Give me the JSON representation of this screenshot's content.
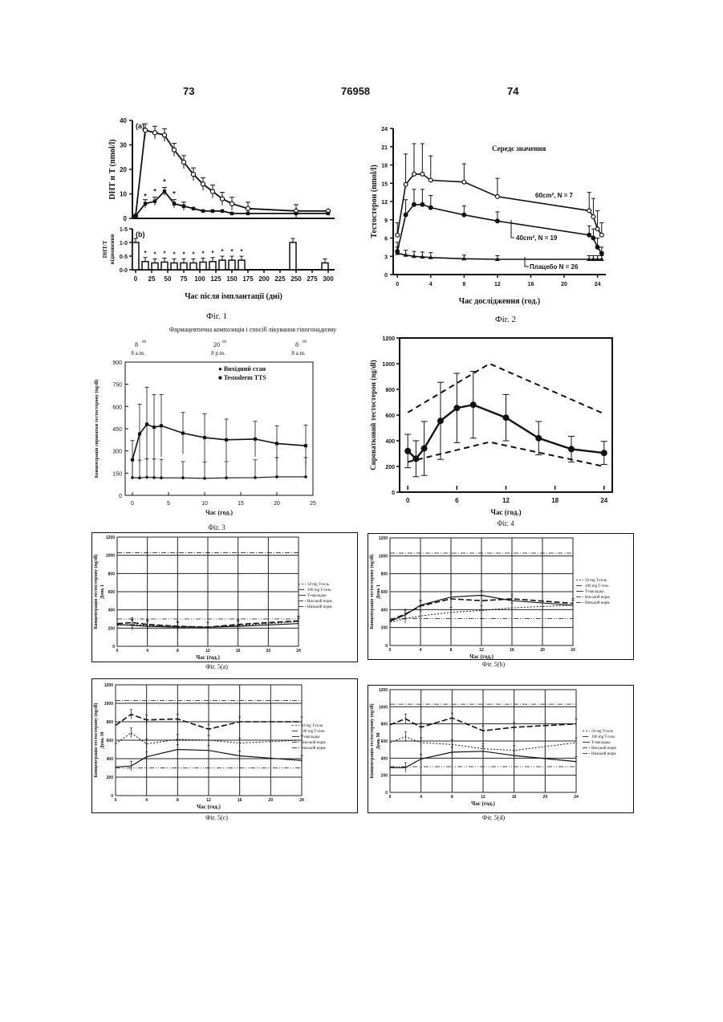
{
  "header": {
    "left": "73",
    "center": "76958",
    "right": "74"
  },
  "banner": {
    "title": "Фармацевтична композиція і спосіб лікування гіпогонадизму",
    "top_labels": [
      {
        "sup": "00",
        "main": "8",
        "sub": "8 a.m."
      },
      {
        "sup": "00",
        "main": "20",
        "sub": "8 p.m."
      },
      {
        "sup": "00",
        "main": "8",
        "sub": "8 a.m."
      }
    ]
  },
  "fig1": {
    "caption": "Фіг. 1",
    "panel_a_label": "(a)",
    "panel_b_label": "(b)",
    "ylabel_a": "DHT и T (nmol/l)",
    "ylabel_b": "DHT/T відношення",
    "xlabel": "Час після імплантації (дні)",
    "star": "*",
    "chart_data": {
      "type": "line",
      "x": [
        0,
        25,
        50,
        75,
        100,
        125,
        150,
        175,
        200,
        225,
        250,
        275,
        300
      ],
      "x_ticks": [
        "0",
        "25",
        "50",
        "75",
        "100",
        "125",
        "150",
        "175",
        "200",
        "225",
        "250",
        "275",
        "300"
      ],
      "panel_a": {
        "yticks": [
          "0",
          "10",
          "20",
          "30",
          "40"
        ],
        "ylim": [
          0,
          40
        ],
        "series": [
          {
            "x": [
              0,
              15,
              30,
              45,
              60,
              75,
              90,
              105,
              120,
              135,
              150,
              175,
              250,
              300
            ],
            "values": [
              1,
              36,
              35,
              34,
              28,
              23,
              18,
              14,
              11,
              8,
              6,
              4,
              3,
              3
            ]
          },
          {
            "x": [
              0,
              15,
              30,
              45,
              60,
              75,
              90,
              105,
              120,
              135,
              150,
              175,
              250,
              300
            ],
            "values": [
              1,
              6,
              7,
              11,
              6,
              5,
              4,
              3,
              3,
              3,
              2,
              2,
              2,
              2
            ]
          }
        ]
      },
      "panel_b": {
        "yticks": [
          "0-0",
          "0-5",
          "1-0",
          "1-5"
        ],
        "ylim": [
          0,
          1.5
        ],
        "bars": {
          "x": [
            0,
            15,
            30,
            45,
            60,
            75,
            90,
            105,
            120,
            135,
            150,
            165,
            245,
            295
          ],
          "values": [
            1.0,
            0.3,
            0.25,
            0.28,
            0.25,
            0.25,
            0.25,
            0.28,
            0.3,
            0.35,
            0.35,
            0.35,
            1.0,
            0.25
          ]
        }
      }
    }
  },
  "fig2": {
    "caption": "Фіг. 2",
    "title": "Середє значення",
    "ylabel": "Тестостерон (nmol/l)",
    "xlabel": "Час дослідження (год.)",
    "series_labels": [
      "60cm², N = 7",
      "40cm², N = 19",
      "Плацебо N = 26"
    ],
    "chart_data": {
      "type": "line",
      "xlim": [
        -0.5,
        25
      ],
      "ylim": [
        0,
        24
      ],
      "xticks": [
        "0",
        "4",
        "8",
        "12",
        "16",
        "20",
        "24"
      ],
      "yticks": [
        "0",
        "3",
        "6",
        "9",
        "12",
        "15",
        "18",
        "21",
        "24"
      ],
      "series": [
        {
          "name": "60cm², N = 7",
          "x": [
            0,
            1,
            2,
            3,
            4,
            8,
            12,
            23,
            23.5,
            24,
            24.5
          ],
          "values": [
            6.5,
            14.8,
            16.5,
            16.5,
            15.5,
            15.2,
            12.8,
            10.5,
            9.5,
            7.5,
            6.5
          ]
        },
        {
          "name": "40cm², N = 19",
          "x": [
            0,
            1,
            2,
            3,
            4,
            8,
            12,
            23,
            23.5,
            24,
            24.5
          ],
          "values": [
            3.8,
            9.8,
            11.5,
            11.5,
            11,
            9.8,
            8.8,
            6.5,
            6,
            4.5,
            3.5
          ]
        },
        {
          "name": "Плацебо N = 26",
          "x": [
            0,
            1,
            2,
            3,
            4,
            8,
            12,
            23,
            23.5,
            24,
            24.5
          ],
          "values": [
            3.5,
            3.2,
            3,
            2.9,
            2.8,
            2.6,
            2.5,
            2.5,
            2.5,
            2.5,
            2.5
          ]
        }
      ]
    }
  },
  "fig3": {
    "caption": "Фіг. 3",
    "ylabel": "Концентрація сироватки тестостерону (ng/dl)",
    "xlabel": "Час (год.)",
    "legend": [
      "● Вихідний стан",
      "■ Testoderm TTS"
    ],
    "chart_data": {
      "type": "line",
      "xlim": [
        -1,
        25
      ],
      "ylim": [
        0,
        900
      ],
      "xticks": [
        "0",
        "5",
        "10",
        "15",
        "20",
        "25"
      ],
      "yticks": [
        "0",
        "150",
        "300",
        "450",
        "600",
        "750",
        "900"
      ],
      "series": [
        {
          "name": "Testoderm TTS",
          "x": [
            0,
            1,
            2,
            3,
            4,
            7,
            10,
            13,
            17,
            20,
            24
          ],
          "values": [
            240,
            415,
            480,
            460,
            470,
            420,
            390,
            375,
            380,
            350,
            335
          ]
        },
        {
          "name": "Вихідний стан",
          "x": [
            0,
            1,
            2,
            3,
            4,
            7,
            10,
            13,
            17,
            20,
            24
          ],
          "values": [
            120,
            118,
            122,
            120,
            118,
            118,
            115,
            118,
            120,
            125,
            125
          ]
        }
      ]
    }
  },
  "fig4": {
    "caption": "Фіг. 4",
    "ylabel": "Сироватковий тестостерон (ng/dl)",
    "xlabel": "Час (год.)",
    "chart_data": {
      "type": "line",
      "xlim": [
        -1,
        25
      ],
      "ylim": [
        0,
        1200
      ],
      "xticks": [
        "0",
        "6",
        "12",
        "18",
        "24"
      ],
      "yticks": [
        "0",
        "200",
        "400",
        "600",
        "800",
        "1000",
        "1200"
      ],
      "series": [
        {
          "x": [
            0,
            1,
            2,
            4,
            6,
            8,
            12,
            16,
            20,
            24
          ],
          "values": [
            320,
            260,
            340,
            555,
            655,
            680,
            580,
            420,
            335,
            305
          ]
        },
        {
          "x": [
            0,
            10,
            24
          ],
          "values": [
            620,
            1000,
            610
          ]
        },
        {
          "x": [
            0,
            10,
            24
          ],
          "values": [
            235,
            390,
            200
          ]
        }
      ]
    }
  },
  "fig5a": {
    "caption": "Фіг. 5(а)",
    "ylabel": "Концентрація тестостерону (ng/dl)",
    "day": "День 1",
    "xlabel": "Час (год.)",
    "legend": [
      "50 mg T-гель",
      "100 mg T-гель",
      "T-накладка",
      "Високий норм.",
      "Низький норм."
    ],
    "chart_data": {
      "type": "line",
      "xlim": [
        0,
        24
      ],
      "ylim": [
        0,
        1200
      ],
      "xticks": [
        "0",
        "4",
        "8",
        "12",
        "16",
        "20",
        "24"
      ],
      "yticks": [
        "0",
        "200",
        "400",
        "600",
        "800",
        "1000",
        "1200"
      ],
      "series": [
        {
          "name": "50 mg T-гель",
          "x": [
            0,
            2,
            4,
            8,
            12,
            16,
            24
          ],
          "values": [
            230,
            240,
            230,
            220,
            210,
            230,
            270
          ]
        },
        {
          "name": "100 mg T-гель",
          "x": [
            0,
            2,
            4,
            8,
            12,
            16,
            24
          ],
          "values": [
            250,
            260,
            240,
            220,
            210,
            240,
            280
          ]
        },
        {
          "name": "T-накладка",
          "x": [
            0,
            2,
            4,
            8,
            12,
            16,
            24
          ],
          "values": [
            240,
            230,
            220,
            210,
            210,
            220,
            250
          ]
        },
        {
          "name": "Високий норм.",
          "x": [
            0,
            24
          ],
          "values": [
            1030,
            1030
          ]
        },
        {
          "name": "Низький норм.",
          "x": [
            0,
            24
          ],
          "values": [
            300,
            300
          ]
        }
      ]
    }
  },
  "fig5b": {
    "caption": "Фіг. 5(b)",
    "ylabel": "Концентрація тестостерону (ng/dl)",
    "day": "День 1",
    "xlabel": "Час (год.)",
    "legend": [
      "50 mg T-гель",
      "100 mg T-гель",
      "T-накладка",
      "Високий норм.",
      "Низький норм."
    ],
    "chart_data": {
      "type": "line",
      "xlim": [
        0,
        24
      ],
      "ylim": [
        0,
        1200
      ],
      "xticks": [
        "0",
        "4",
        "8",
        "12",
        "16",
        "20",
        "24"
      ],
      "yticks": [
        "0",
        "200",
        "400",
        "600",
        "800",
        "1000",
        "1200"
      ],
      "series": [
        {
          "name": "50 mg T-гель",
          "x": [
            0,
            2,
            4,
            8,
            12,
            16,
            24
          ],
          "values": [
            260,
            300,
            330,
            370,
            390,
            420,
            450
          ]
        },
        {
          "name": "100 mg T-гель",
          "x": [
            0,
            2,
            4,
            8,
            12,
            16,
            24
          ],
          "values": [
            280,
            350,
            440,
            520,
            500,
            520,
            470
          ]
        },
        {
          "name": "T-накладка",
          "x": [
            0,
            2,
            4,
            8,
            12,
            16,
            24
          ],
          "values": [
            270,
            340,
            450,
            540,
            560,
            500,
            450
          ]
        },
        {
          "name": "Високий норм.",
          "x": [
            0,
            24
          ],
          "values": [
            1030,
            1030
          ]
        },
        {
          "name": "Низький норм.",
          "x": [
            0,
            24
          ],
          "values": [
            300,
            300
          ]
        }
      ]
    }
  },
  "fig5c": {
    "caption": "Фіг. 5(с)",
    "ylabel": "Концентрація тестостерону (ng/dl)",
    "day": "День 30",
    "xlabel": "Час (год.)",
    "legend": [
      "50 mg T-гель",
      "100 mg T-гель",
      "T-накладка",
      "Високий норм.",
      "Низький норм."
    ],
    "chart_data": {
      "type": "line",
      "xlim": [
        0,
        24
      ],
      "ylim": [
        0,
        1200
      ],
      "xticks": [
        "0",
        "4",
        "8",
        "12",
        "16",
        "20",
        "24"
      ],
      "yticks": [
        "0",
        "200",
        "400",
        "600",
        "800",
        "1000",
        "1200"
      ],
      "series": [
        {
          "name": "50 mg T-гель",
          "x": [
            0,
            2,
            4,
            8,
            12,
            16,
            24
          ],
          "values": [
            560,
            680,
            560,
            610,
            600,
            570,
            600
          ]
        },
        {
          "name": "100 mg T-гель",
          "x": [
            0,
            2,
            4,
            8,
            12,
            16,
            24
          ],
          "values": [
            760,
            880,
            820,
            830,
            720,
            800,
            800
          ]
        },
        {
          "name": "T-накладка",
          "x": [
            0,
            2,
            4,
            8,
            12,
            16,
            24
          ],
          "values": [
            310,
            320,
            420,
            500,
            490,
            430,
            380
          ]
        },
        {
          "name": "Високий норм.",
          "x": [
            0,
            24
          ],
          "values": [
            1030,
            1030
          ]
        },
        {
          "name": "Низький норм.",
          "x": [
            0,
            24
          ],
          "values": [
            300,
            300
          ]
        }
      ]
    }
  },
  "fig5d": {
    "caption": "Фіг. 5(d)",
    "ylabel": "Концентрація тестостерону (ng/dl)",
    "day": "День 90",
    "xlabel": "Час (год.)",
    "legend": [
      "50 mg T-гель",
      "100 mg T-гель",
      "T-накладка",
      "Високий норм.",
      "Низький норм."
    ],
    "chart_data": {
      "type": "line",
      "xlim": [
        0,
        24
      ],
      "ylim": [
        0,
        1200
      ],
      "xticks": [
        "0",
        "4",
        "8",
        "12",
        "16",
        "20",
        "24"
      ],
      "yticks": [
        "0",
        "200",
        "400",
        "600",
        "800",
        "1000",
        "1200"
      ],
      "series": [
        {
          "name": "50 mg T-гель",
          "x": [
            0,
            2,
            4,
            8,
            12,
            16,
            24
          ],
          "values": [
            580,
            650,
            580,
            560,
            510,
            490,
            580
          ]
        },
        {
          "name": "100 mg T-гель",
          "x": [
            0,
            2,
            4,
            8,
            12,
            16,
            24
          ],
          "values": [
            790,
            860,
            760,
            870,
            720,
            760,
            800
          ]
        },
        {
          "name": "T-накладка",
          "x": [
            0,
            2,
            4,
            8,
            12,
            16,
            24
          ],
          "values": [
            290,
            290,
            390,
            470,
            480,
            430,
            360
          ]
        },
        {
          "name": "Високий норм.",
          "x": [
            0,
            24
          ],
          "values": [
            1030,
            1030
          ]
        },
        {
          "name": "Низький норм.",
          "x": [
            0,
            24
          ],
          "values": [
            300,
            300
          ]
        }
      ]
    }
  }
}
